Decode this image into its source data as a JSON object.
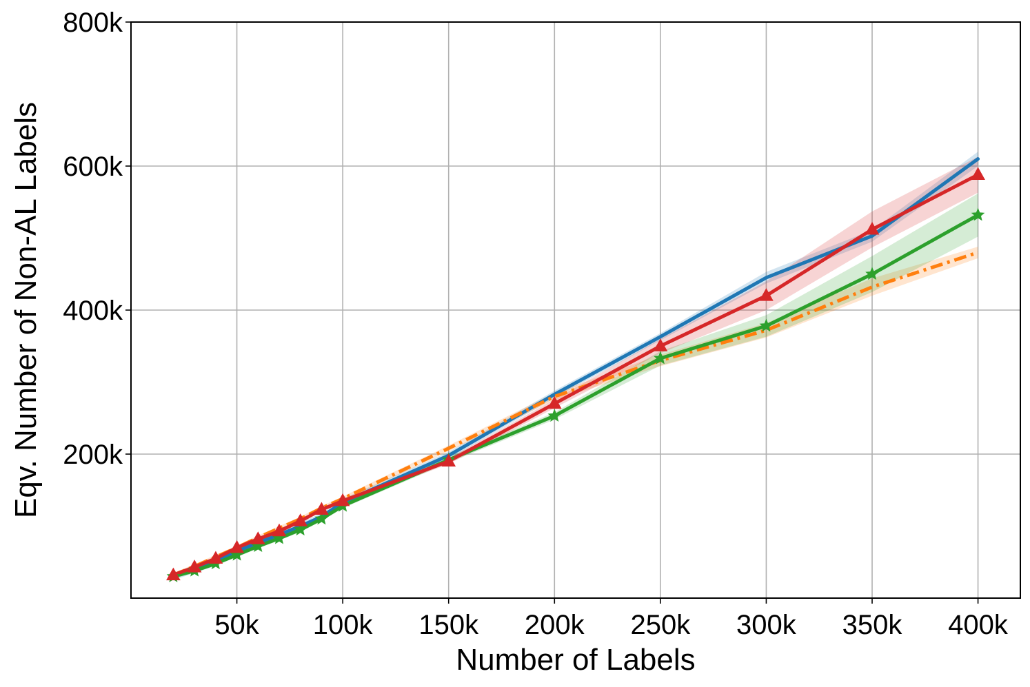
{
  "chart_data": {
    "type": "line",
    "title": "",
    "xlabel": "Number of Labels",
    "ylabel": "Eqv. Number of Non-AL Labels",
    "xlim": [
      0,
      420000
    ],
    "ylim": [
      0,
      800000
    ],
    "x_ticks": [
      50000,
      100000,
      150000,
      200000,
      250000,
      300000,
      350000,
      400000
    ],
    "x_tick_labels": [
      "50k",
      "100k",
      "150k",
      "200k",
      "250k",
      "300k",
      "350k",
      "400k"
    ],
    "y_ticks": [
      200000,
      400000,
      600000,
      800000
    ],
    "y_tick_labels": [
      "200k",
      "400k",
      "600k",
      "800k"
    ],
    "grid": true,
    "series": [
      {
        "color": "#1f77b4",
        "line_style": "solid",
        "marker": "none",
        "x": [
          20000,
          30000,
          40000,
          50000,
          60000,
          70000,
          80000,
          90000,
          100000,
          150000,
          200000,
          250000,
          300000,
          350000,
          400000
        ],
        "y": [
          30000,
          40000,
          50000,
          65000,
          77000,
          88000,
          100000,
          113000,
          133000,
          198000,
          283000,
          363000,
          445000,
          503000,
          610000
        ],
        "band": [
          5000,
          5000,
          5000,
          5000,
          5000,
          5000,
          5000,
          5000,
          5000,
          5000,
          5000,
          5000,
          8000,
          8000,
          10000
        ]
      },
      {
        "color": "#ff7f0e",
        "line_style": "dashdot",
        "marker": "none",
        "x": [
          20000,
          30000,
          40000,
          50000,
          60000,
          70000,
          80000,
          90000,
          100000,
          150000,
          200000,
          250000,
          300000,
          350000,
          400000
        ],
        "y": [
          32000,
          44000,
          57000,
          70000,
          84000,
          97000,
          110000,
          125000,
          138000,
          208000,
          280000,
          330000,
          372000,
          432000,
          480000
        ],
        "band": [
          3000,
          3000,
          3000,
          3000,
          3000,
          3000,
          3000,
          3000,
          3000,
          4000,
          5000,
          8000,
          10000,
          12000,
          8000
        ]
      },
      {
        "color": "#2ca02c",
        "line_style": "solid",
        "marker": "star",
        "x": [
          20000,
          30000,
          40000,
          50000,
          60000,
          70000,
          80000,
          90000,
          100000,
          150000,
          200000,
          250000,
          300000,
          350000,
          400000
        ],
        "y": [
          30000,
          38000,
          48000,
          60000,
          72000,
          83000,
          95000,
          110000,
          128000,
          192000,
          253000,
          333000,
          378000,
          450000,
          532000
        ],
        "band": [
          3000,
          3000,
          3000,
          3000,
          3000,
          3000,
          3000,
          3000,
          3000,
          4000,
          5000,
          10000,
          15000,
          25000,
          30000
        ]
      },
      {
        "color": "#d62728",
        "line_style": "solid",
        "marker": "triangle",
        "x": [
          20000,
          30000,
          40000,
          50000,
          60000,
          70000,
          80000,
          90000,
          100000,
          150000,
          200000,
          250000,
          300000,
          350000,
          400000
        ],
        "y": [
          32000,
          43000,
          55000,
          70000,
          82000,
          93000,
          107000,
          123000,
          135000,
          190000,
          270000,
          350000,
          420000,
          512000,
          588000
        ],
        "band": [
          3000,
          3000,
          3000,
          3000,
          3000,
          3000,
          3000,
          3000,
          3000,
          4000,
          6000,
          10000,
          20000,
          25000,
          25000
        ]
      }
    ]
  }
}
